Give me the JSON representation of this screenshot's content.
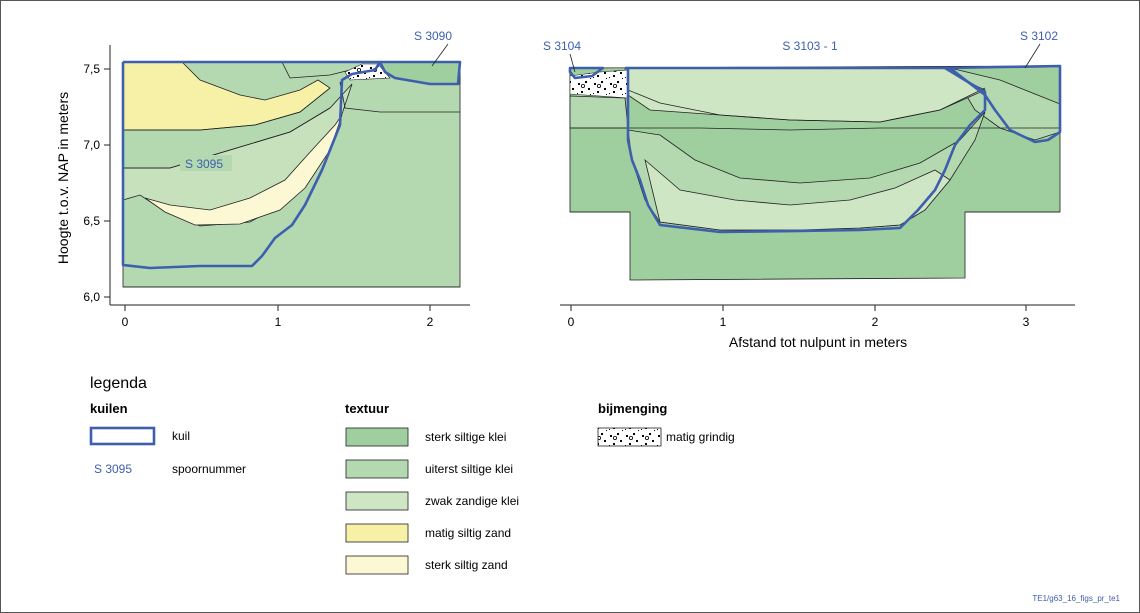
{
  "colors": {
    "sterk_siltige_klei": "#9fcf9e",
    "uiterst_siltige_klei": "#b4d8b0",
    "zwak_zandige_klei": "#cfe6c4",
    "matig_siltig_zand": "#f7f1a7",
    "sterk_siltig_zand": "#fbf8d3",
    "kuil_outline": "#3d5fae",
    "label_blue": "#3d5fae"
  },
  "axes": {
    "ylabel": "Hoogte t.o.v. NAP in meters",
    "xlabel": "Afstand tot nulpunt in meters",
    "yticks": [
      "7,5",
      "7,0",
      "6,5",
      "6,0"
    ],
    "xticks_left": [
      "0",
      "1",
      "2"
    ],
    "xticks_right": [
      "0",
      "1",
      "2",
      "3"
    ]
  },
  "labels": {
    "s3090": "S 3090",
    "s3095": "S 3095",
    "s3104": "S 3104",
    "s3103": "S 3103 - 1",
    "s3102": "S 3102"
  },
  "legend": {
    "title": "legenda",
    "kuilen": {
      "heading": "kuilen",
      "items": [
        "kuil",
        "spoornummer"
      ],
      "sample_number": "S 3095"
    },
    "textuur": {
      "heading": "textuur",
      "items": [
        "sterk siltige klei",
        "uiterst siltige klei",
        "zwak zandige klei",
        "matig siltig zand",
        "sterk siltig zand"
      ]
    },
    "bijmenging": {
      "heading": "bijmenging",
      "items": [
        "matig grindig"
      ]
    }
  },
  "footer": "TE1/g63_16_figs_pr_te1"
}
